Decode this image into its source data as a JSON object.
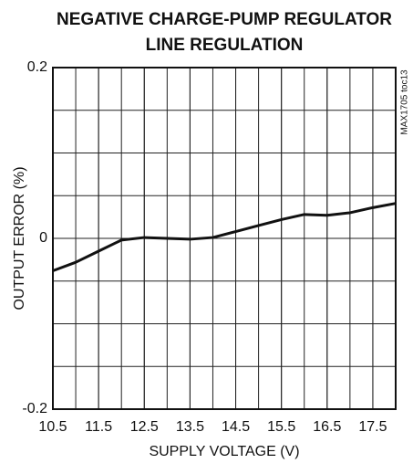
{
  "chart_data": {
    "type": "line",
    "title_lines": [
      "NEGATIVE CHARGE-PUMP REGULATOR",
      "LINE REGULATION"
    ],
    "x_label": "SUPPLY VOLTAGE (V)",
    "y_label": "OUTPUT ERROR (%)",
    "annotation": "MAX1705 toc13",
    "x": [
      10.5,
      11.0,
      11.5,
      12.0,
      12.5,
      13.0,
      13.5,
      14.0,
      14.5,
      15.0,
      15.5,
      16.0,
      16.5,
      17.0,
      17.5,
      18.0
    ],
    "series": [
      {
        "name": "OUTPUT ERROR",
        "color": "#111111",
        "values": [
          -0.038,
          -0.028,
          -0.015,
          -0.002,
          0.001,
          0.0,
          -0.001,
          0.001,
          0.008,
          0.015,
          0.022,
          0.028,
          0.027,
          0.03,
          0.036,
          0.041
        ]
      }
    ],
    "xlim": [
      10.5,
      18
    ],
    "xticks": [
      10.5,
      11.5,
      12.5,
      13.5,
      14.5,
      15.5,
      16.5,
      17.5
    ],
    "ylim": [
      -0.2,
      0.2
    ],
    "yticks": [
      -0.2,
      0,
      0.2
    ],
    "grid": true
  }
}
